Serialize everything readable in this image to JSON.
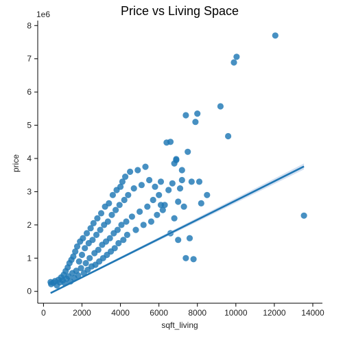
{
  "chart_data": {
    "type": "scatter",
    "title": "Price vs Living Space",
    "xlabel": "sqft_living",
    "ylabel": "price",
    "y_offset_label": "1e6",
    "xlim": [
      -300,
      14500
    ],
    "ylim": [
      -0.15,
      8.15
    ],
    "x_ticks": [
      0,
      2000,
      4000,
      6000,
      8000,
      10000,
      12000,
      14000
    ],
    "y_ticks": [
      0,
      1,
      2,
      3,
      4,
      5,
      6,
      7,
      8
    ],
    "x_tick_labels": [
      "0",
      "2000",
      "4000",
      "6000",
      "8000",
      "10000",
      "12000",
      "14000"
    ],
    "y_tick_labels": [
      "0",
      "1",
      "2",
      "3",
      "4",
      "5",
      "6",
      "7",
      "8"
    ],
    "grid": false,
    "point_color": "#1f77b4",
    "line_color": "#1f77b4",
    "ci_color": "#aec7e8",
    "regression": {
      "x_start": 370,
      "x_end": 13540,
      "y_start": -0.05,
      "y_end": 3.76,
      "ci_halfwidth_end": 0.09
    },
    "series": [
      {
        "points": [
          [
            370,
            0.28
          ],
          [
            400,
            0.22
          ],
          [
            520,
            0.26
          ],
          [
            600,
            0.31
          ],
          [
            700,
            0.18
          ],
          [
            780,
            0.35
          ],
          [
            850,
            0.27
          ],
          [
            920,
            0.42
          ],
          [
            1000,
            0.33
          ],
          [
            1050,
            0.5
          ],
          [
            1100,
            0.25
          ],
          [
            1150,
            0.61
          ],
          [
            1200,
            0.38
          ],
          [
            1260,
            0.72
          ],
          [
            1300,
            0.45
          ],
          [
            1350,
            0.85
          ],
          [
            1400,
            0.3
          ],
          [
            1450,
            0.95
          ],
          [
            1500,
            0.55
          ],
          [
            1550,
            1.05
          ],
          [
            1600,
            0.4
          ],
          [
            1650,
            1.2
          ],
          [
            1700,
            0.62
          ],
          [
            1750,
            1.35
          ],
          [
            1800,
            0.48
          ],
          [
            1850,
            0.9
          ],
          [
            1900,
            1.5
          ],
          [
            1950,
            0.7
          ],
          [
            2000,
            1.1
          ],
          [
            2050,
            1.6
          ],
          [
            2100,
            0.55
          ],
          [
            2150,
            1.3
          ],
          [
            2200,
            0.85
          ],
          [
            2250,
            1.75
          ],
          [
            2300,
            0.65
          ],
          [
            2350,
            1.45
          ],
          [
            2400,
            1.0
          ],
          [
            2450,
            1.9
          ],
          [
            2500,
            0.75
          ],
          [
            2550,
            1.55
          ],
          [
            2600,
            2.05
          ],
          [
            2650,
            1.15
          ],
          [
            2700,
            0.8
          ],
          [
            2750,
            1.7
          ],
          [
            2800,
            2.2
          ],
          [
            2850,
            1.25
          ],
          [
            2900,
            0.9
          ],
          [
            2950,
            1.85
          ],
          [
            3000,
            2.35
          ],
          [
            3050,
            1.4
          ],
          [
            3100,
            1.0
          ],
          [
            3150,
            2.0
          ],
          [
            3200,
            2.55
          ],
          [
            3250,
            1.5
          ],
          [
            3300,
            1.1
          ],
          [
            3350,
            2.1
          ],
          [
            3400,
            2.65
          ],
          [
            3450,
            1.6
          ],
          [
            3500,
            1.2
          ],
          [
            3550,
            2.3
          ],
          [
            3600,
            2.9
          ],
          [
            3650,
            1.75
          ],
          [
            3700,
            1.3
          ],
          [
            3750,
            2.45
          ],
          [
            3800,
            3.05
          ],
          [
            3850,
            1.85
          ],
          [
            3900,
            1.45
          ],
          [
            3950,
            2.6
          ],
          [
            4000,
            3.15
          ],
          [
            4050,
            2.0
          ],
          [
            4100,
            3.3
          ],
          [
            4150,
            1.55
          ],
          [
            4200,
            2.75
          ],
          [
            4250,
            3.45
          ],
          [
            4300,
            2.1
          ],
          [
            4350,
            1.7
          ],
          [
            4400,
            2.9
          ],
          [
            4500,
            3.6
          ],
          [
            4600,
            2.25
          ],
          [
            4700,
            3.1
          ],
          [
            4800,
            1.85
          ],
          [
            4900,
            3.65
          ],
          [
            5000,
            2.4
          ],
          [
            5100,
            3.2
          ],
          [
            5200,
            2.0
          ],
          [
            5300,
            3.75
          ],
          [
            5400,
            2.55
          ],
          [
            5500,
            3.35
          ],
          [
            5600,
            2.1
          ],
          [
            5700,
            2.75
          ],
          [
            5800,
            3.15
          ],
          [
            5900,
            2.3
          ],
          [
            6000,
            2.9
          ],
          [
            6100,
            3.3
          ],
          [
            6200,
            2.45
          ],
          [
            6300,
            2.6
          ],
          [
            6400,
            4.48
          ],
          [
            6500,
            3.05
          ],
          [
            6600,
            4.5
          ],
          [
            6700,
            3.25
          ],
          [
            6800,
            3.85
          ],
          [
            6900,
            3.98
          ],
          [
            7000,
            2.7
          ],
          [
            7100,
            3.1
          ],
          [
            7200,
            3.35
          ],
          [
            7300,
            2.55
          ],
          [
            7400,
            5.3
          ],
          [
            7500,
            4.2
          ],
          [
            7600,
            1.6
          ],
          [
            7700,
            3.3
          ],
          [
            7800,
            0.97
          ],
          [
            7900,
            5.1
          ],
          [
            8000,
            5.35
          ],
          [
            8100,
            3.3
          ],
          [
            8200,
            2.65
          ],
          [
            8500,
            2.9
          ],
          [
            9200,
            5.57
          ],
          [
            9600,
            4.67
          ],
          [
            9900,
            6.89
          ],
          [
            10040,
            7.06
          ],
          [
            12050,
            7.7
          ],
          [
            13540,
            2.28
          ],
          [
            6900,
            3.95
          ],
          [
            7200,
            3.65
          ],
          [
            6100,
            2.6
          ],
          [
            6600,
            1.75
          ],
          [
            7000,
            1.55
          ],
          [
            7400,
            1.0
          ],
          [
            6800,
            2.2
          ]
        ]
      }
    ]
  }
}
